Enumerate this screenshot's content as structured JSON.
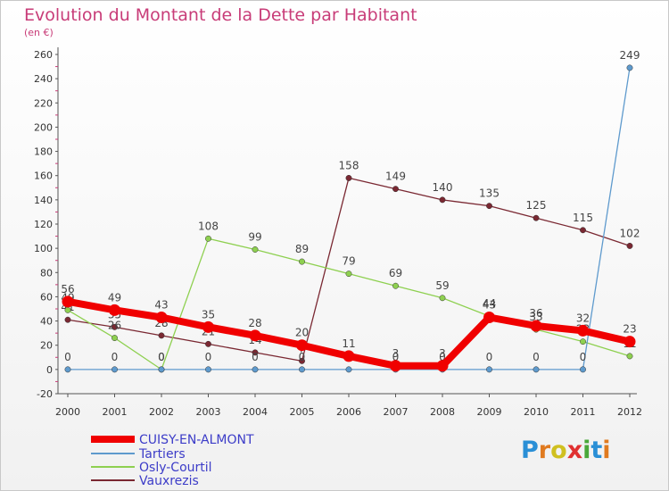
{
  "title": "Evolution du Montant de la Dette par Habitant",
  "unit": "(en €)",
  "logo": "Proxiti",
  "chart_data": {
    "type": "line",
    "title": "Evolution du Montant de la Dette par Habitant",
    "ylabel": "(en €)",
    "x": [
      "2000",
      "2001",
      "2002",
      "2003",
      "2004",
      "2005",
      "2006",
      "2007",
      "2008",
      "2009",
      "2010",
      "2011",
      "2012"
    ],
    "yticks": [
      "-20",
      "0",
      "20",
      "40",
      "60",
      "80",
      "100",
      "120",
      "140",
      "160",
      "180",
      "200",
      "220",
      "240",
      "260"
    ],
    "ylim": [
      -20,
      260
    ],
    "grid": false,
    "legend_position": "bottom-left",
    "series": [
      {
        "name": "Vauxrezis",
        "color": "#7a2832",
        "values": [
          41,
          35,
          28,
          21,
          14,
          7,
          158,
          149,
          140,
          135,
          125,
          115,
          102
        ],
        "labels": [
          "41",
          "35",
          "28",
          "21",
          "14",
          "7",
          "158",
          "149",
          "140",
          "135",
          "125",
          "115",
          "102"
        ]
      },
      {
        "name": "Osly-Courtil",
        "color": "#8ed050",
        "values": [
          49,
          26,
          0,
          108,
          99,
          89,
          79,
          69,
          59,
          44,
          33,
          23,
          11
        ],
        "labels": [
          "49",
          "26",
          "0",
          "108",
          "99",
          "89",
          "79",
          "69",
          "59",
          "44",
          "33",
          "23",
          "11"
        ]
      },
      {
        "name": "Tartiers",
        "color": "#5e9acd",
        "values": [
          0,
          0,
          0,
          0,
          0,
          0,
          0,
          0,
          0,
          0,
          0,
          0,
          249
        ],
        "labels": [
          "0",
          "0",
          "0",
          "0",
          "0",
          "0",
          "0",
          "0",
          "0",
          "0",
          "0",
          "0",
          "249"
        ]
      },
      {
        "name": "CUISY-EN-ALMONT",
        "color": "#f00000",
        "values": [
          56,
          49,
          43,
          35,
          28,
          20,
          11,
          3,
          3,
          43,
          36,
          32,
          23
        ],
        "labels": [
          "56",
          "49",
          "43",
          "35",
          "28",
          "20",
          "11",
          "3",
          "3",
          "43",
          "36",
          "32",
          "23"
        ]
      }
    ],
    "legend": [
      "CUISY-EN-ALMONT",
      "Tartiers",
      "Osly-Courtil",
      "Vauxrezis"
    ]
  }
}
